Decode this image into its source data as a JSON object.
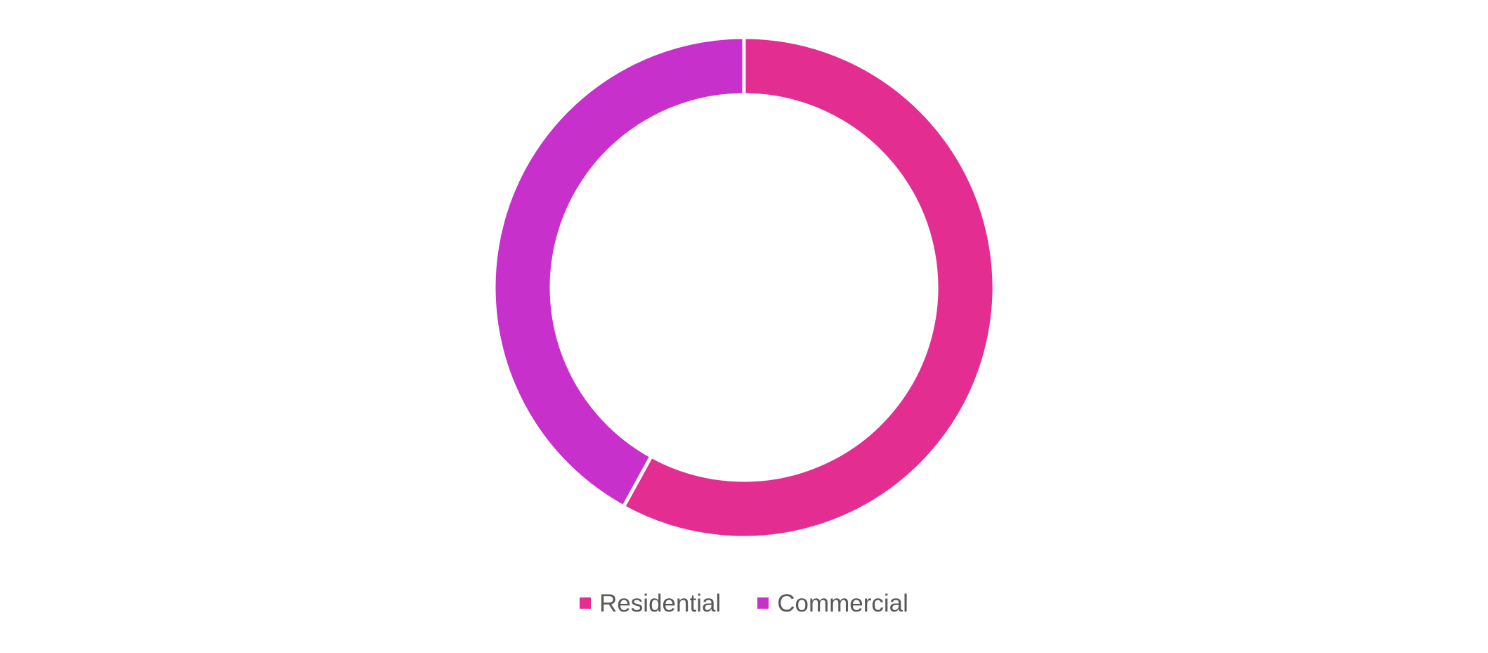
{
  "chart_data": {
    "type": "pie",
    "variant": "doughnut",
    "categories": [
      "Residential",
      "Commercial"
    ],
    "values": [
      58,
      42
    ],
    "colors": [
      "#E32D91",
      "#C830CC"
    ],
    "legend_position": "bottom",
    "legend": [
      {
        "label": "Residential",
        "color": "#E32D91"
      },
      {
        "label": "Commercial",
        "color": "#C830CC"
      }
    ]
  }
}
